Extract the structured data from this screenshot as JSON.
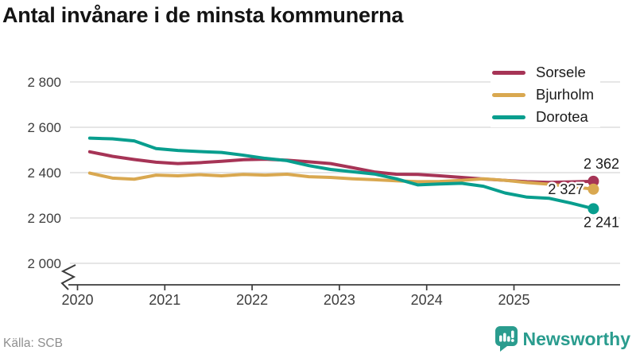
{
  "footer": {
    "source": "Källa: SCB",
    "brand": "Newsworthy"
  },
  "colors": {
    "sorsele": "#a63456",
    "bjurholm": "#d9a850",
    "dorotea": "#089e8e",
    "brand": "#2a9c8e",
    "grid": "#dedede",
    "axis": "#3c3c3c"
  },
  "chart_data": {
    "type": "line",
    "title": "Antal invånare i de minsta kommunerna",
    "xlabel": "",
    "ylabel": "",
    "legend_position": "top-right",
    "grid": "horizontal",
    "axis_break": true,
    "ylim": [
      2000,
      2800
    ],
    "xlim": [
      2020,
      2026.2
    ],
    "x_ticks": [
      2020,
      2021,
      2022,
      2023,
      2024,
      2025
    ],
    "y_ticks": [
      {
        "label": "2 800",
        "value": 2800
      },
      {
        "label": "2 600",
        "value": 2600
      },
      {
        "label": "2 400",
        "value": 2400
      },
      {
        "label": "2 200",
        "value": 2200
      },
      {
        "label": "2 000",
        "value": 2000
      }
    ],
    "x": [
      2020.14,
      2020.4,
      2020.65,
      2020.9,
      2021.15,
      2021.4,
      2021.65,
      2021.9,
      2022.15,
      2022.4,
      2022.65,
      2022.9,
      2023.15,
      2023.4,
      2023.65,
      2023.9,
      2024.15,
      2024.4,
      2024.65,
      2024.9,
      2025.15,
      2025.4,
      2025.65,
      2025.91
    ],
    "series": [
      {
        "name": "Sorsele",
        "color": "#a63456",
        "end_label": "2 362",
        "end_value": 2362,
        "label_side": "above",
        "values": [
          2492,
          2472,
          2458,
          2446,
          2440,
          2444,
          2450,
          2457,
          2459,
          2455,
          2448,
          2440,
          2422,
          2403,
          2393,
          2392,
          2386,
          2379,
          2372,
          2366,
          2360,
          2357,
          2359,
          2362
        ]
      },
      {
        "name": "Bjurholm",
        "color": "#d9a850",
        "end_label": "2 327",
        "end_value": 2327,
        "label_side": "left",
        "values": [
          2398,
          2376,
          2371,
          2389,
          2386,
          2391,
          2386,
          2392,
          2389,
          2393,
          2382,
          2379,
          2373,
          2369,
          2364,
          2360,
          2361,
          2366,
          2373,
          2366,
          2356,
          2349,
          2339,
          2327
        ]
      },
      {
        "name": "Dorotea",
        "color": "#089e8e",
        "end_label": "2 241",
        "end_value": 2241,
        "label_side": "below",
        "values": [
          2552,
          2549,
          2540,
          2506,
          2498,
          2493,
          2489,
          2477,
          2463,
          2453,
          2431,
          2414,
          2404,
          2394,
          2373,
          2346,
          2350,
          2353,
          2340,
          2310,
          2292,
          2287,
          2266,
          2241
        ]
      }
    ]
  }
}
